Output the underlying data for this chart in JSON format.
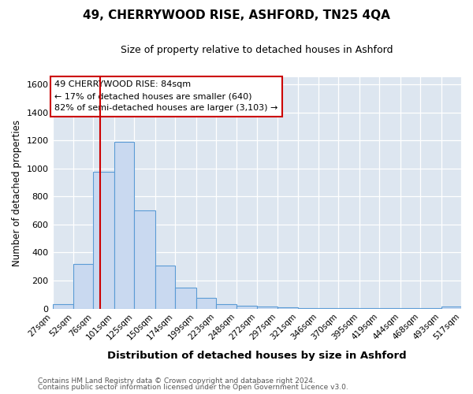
{
  "title": "49, CHERRYWOOD RISE, ASHFORD, TN25 4QA",
  "subtitle": "Size of property relative to detached houses in Ashford",
  "xlabel": "Distribution of detached houses by size in Ashford",
  "ylabel": "Number of detached properties",
  "bin_edges": [
    27,
    52,
    76,
    101,
    125,
    150,
    174,
    199,
    223,
    248,
    272,
    297,
    321,
    346,
    370,
    395,
    419,
    444,
    468,
    493,
    517
  ],
  "bar_heights": [
    30,
    320,
    975,
    1190,
    700,
    310,
    150,
    75,
    30,
    20,
    15,
    10,
    5,
    5,
    5,
    5,
    5,
    5,
    5,
    15
  ],
  "bar_color": "#c9d9f0",
  "bar_edge_color": "#5b9bd5",
  "vline_x": 84,
  "vline_color": "#cc0000",
  "ylim": [
    0,
    1650
  ],
  "yticks": [
    0,
    200,
    400,
    600,
    800,
    1000,
    1200,
    1400,
    1600
  ],
  "annotation_line1": "49 CHERRYWOOD RISE: 84sqm",
  "annotation_line2": "← 17% of detached houses are smaller (640)",
  "annotation_line3": "82% of semi-detached houses are larger (3,103) →",
  "annotation_box_facecolor": "#ffffff",
  "annotation_box_edgecolor": "#cc0000",
  "footer_line1": "Contains HM Land Registry data © Crown copyright and database right 2024.",
  "footer_line2": "Contains public sector information licensed under the Open Government Licence v3.0.",
  "fig_bg_color": "#ffffff",
  "plot_bg_color": "#dde6f0",
  "grid_color": "#ffffff",
  "tick_labels": [
    "27sqm",
    "52sqm",
    "76sqm",
    "101sqm",
    "125sqm",
    "150sqm",
    "174sqm",
    "199sqm",
    "223sqm",
    "248sqm",
    "272sqm",
    "297sqm",
    "321sqm",
    "346sqm",
    "370sqm",
    "395sqm",
    "419sqm",
    "444sqm",
    "468sqm",
    "493sqm",
    "517sqm"
  ]
}
